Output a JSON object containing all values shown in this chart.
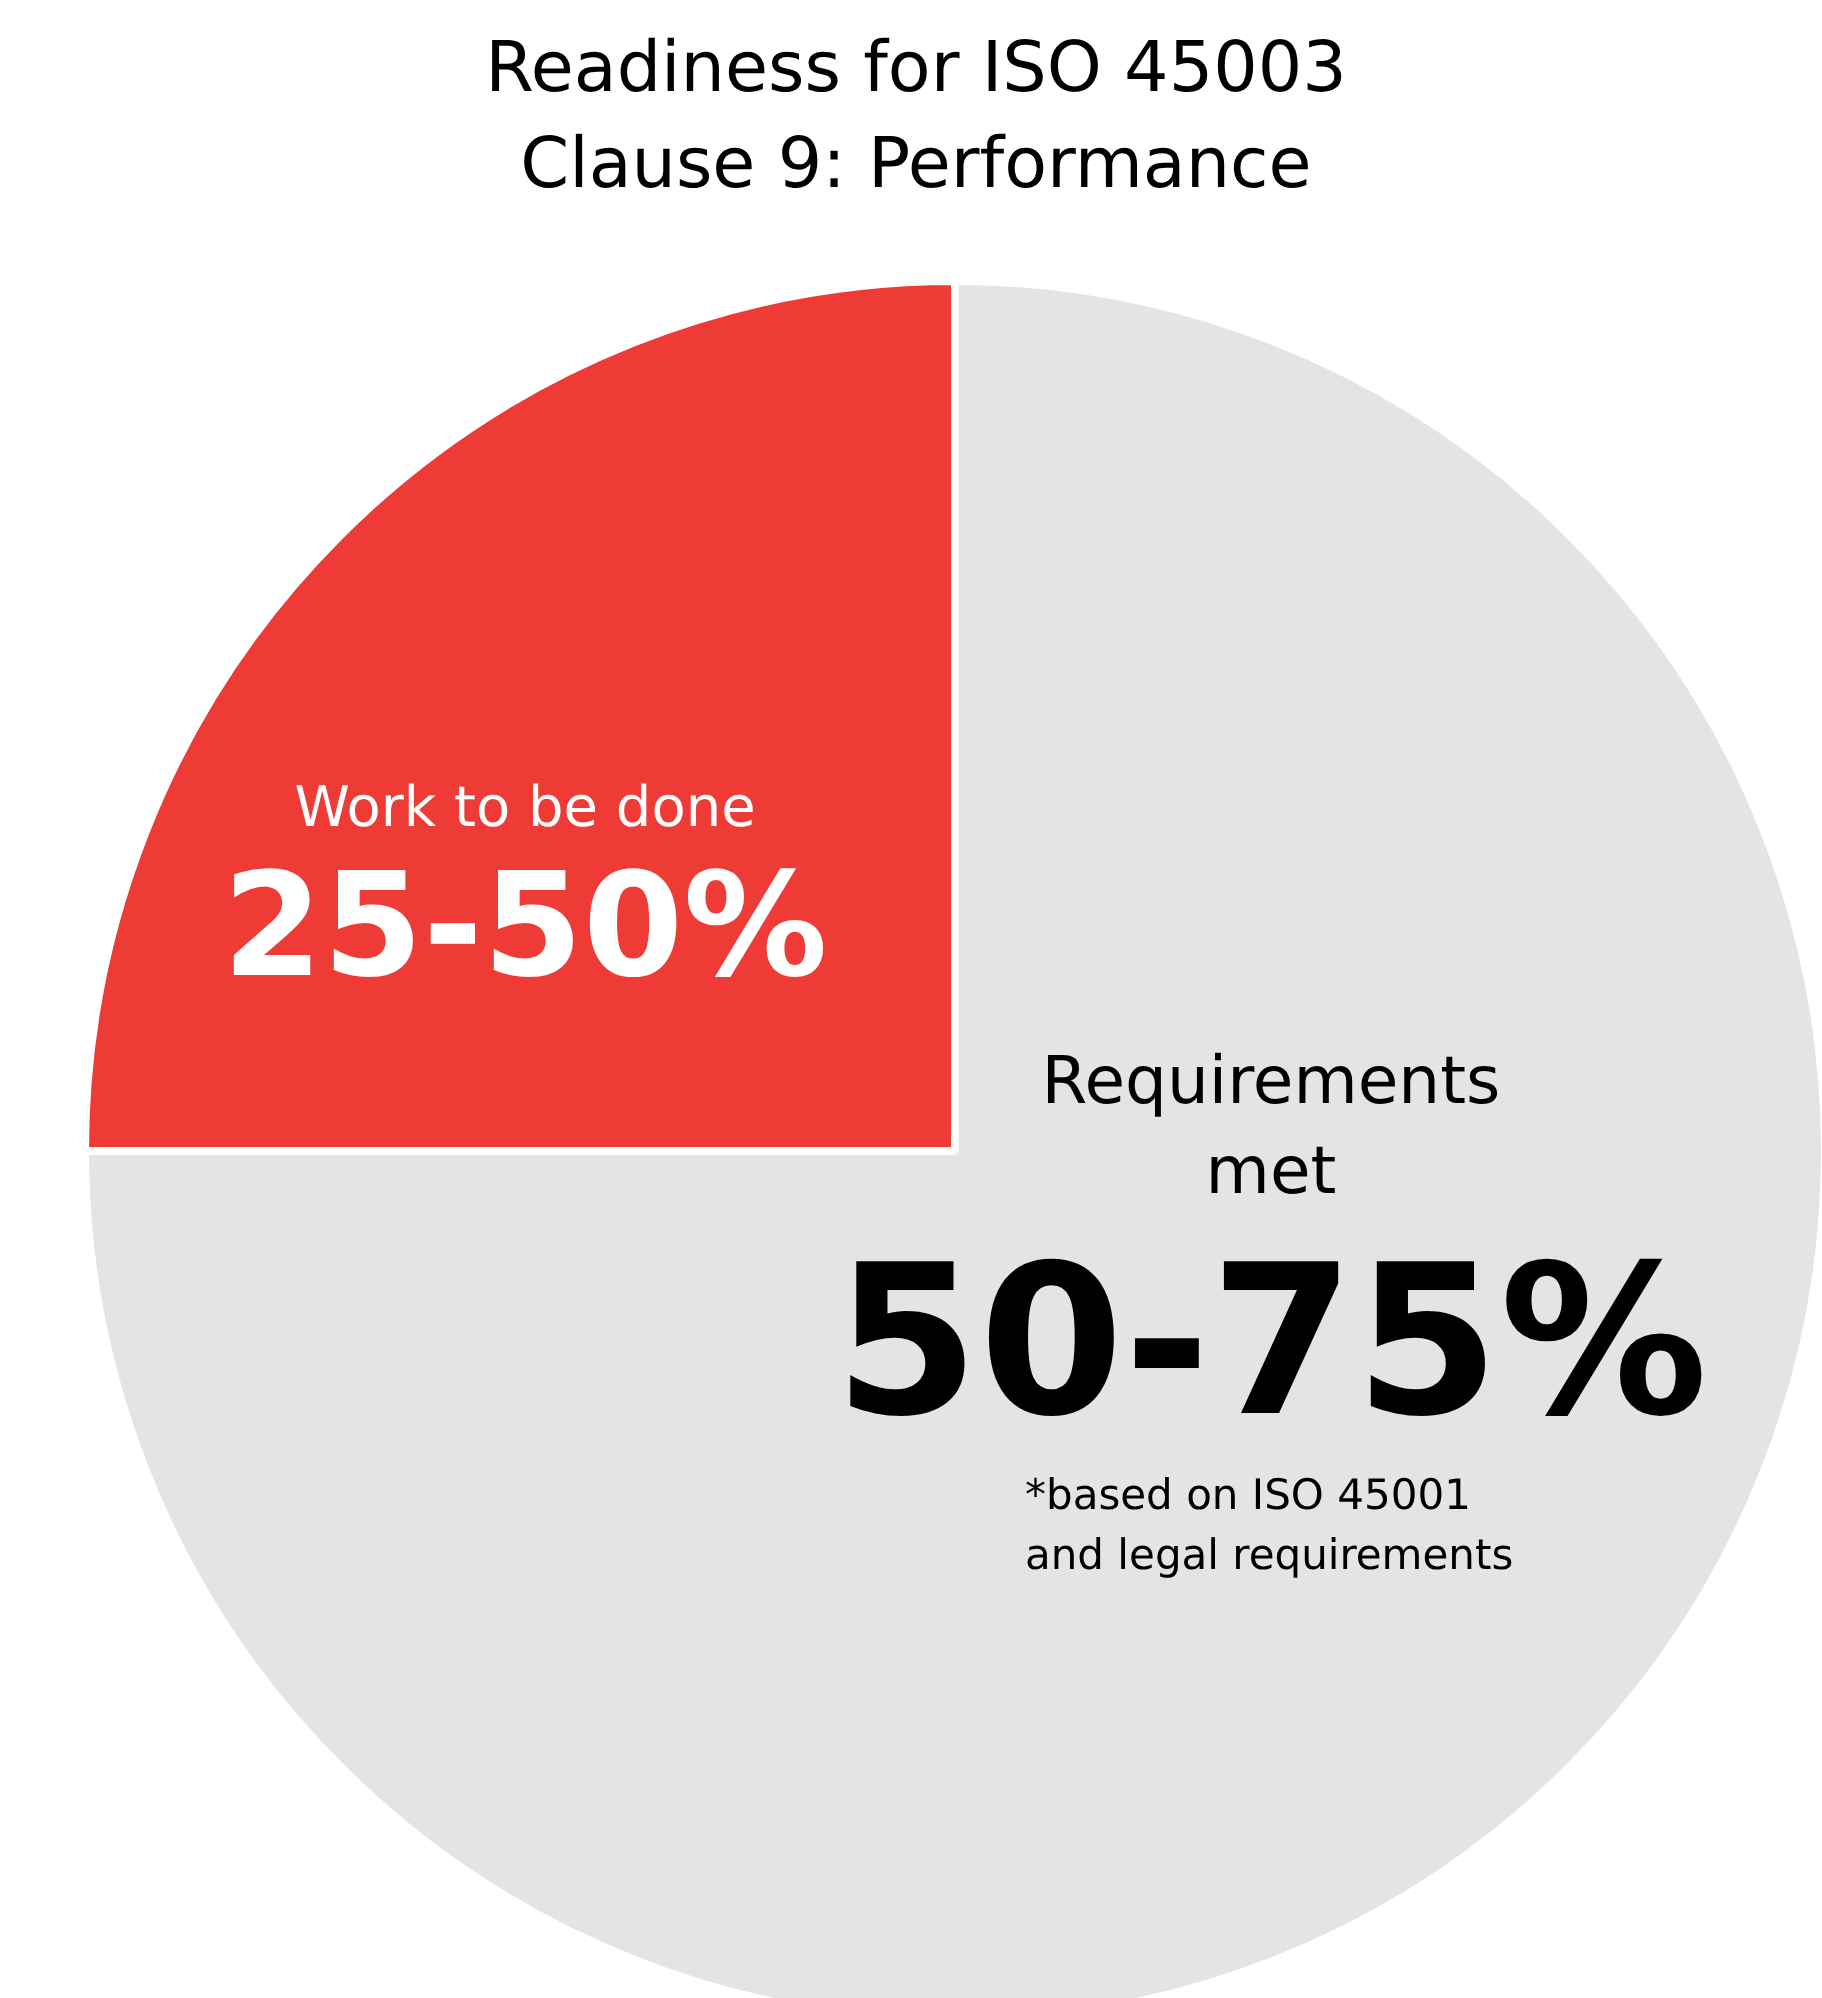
{
  "chart_data": {
    "type": "pie",
    "title": "Readiness for ISO 45003\nClause 9: Performance",
    "categories": [
      "Work to be done",
      "Requirements met"
    ],
    "values": [
      25,
      75
    ],
    "colors": [
      "#ef3b36",
      "#e4e4e4"
    ],
    "annotations": [
      "25-50%",
      "50-75%",
      "*based on ISO 45001\nand legal requirements"
    ]
  }
}
